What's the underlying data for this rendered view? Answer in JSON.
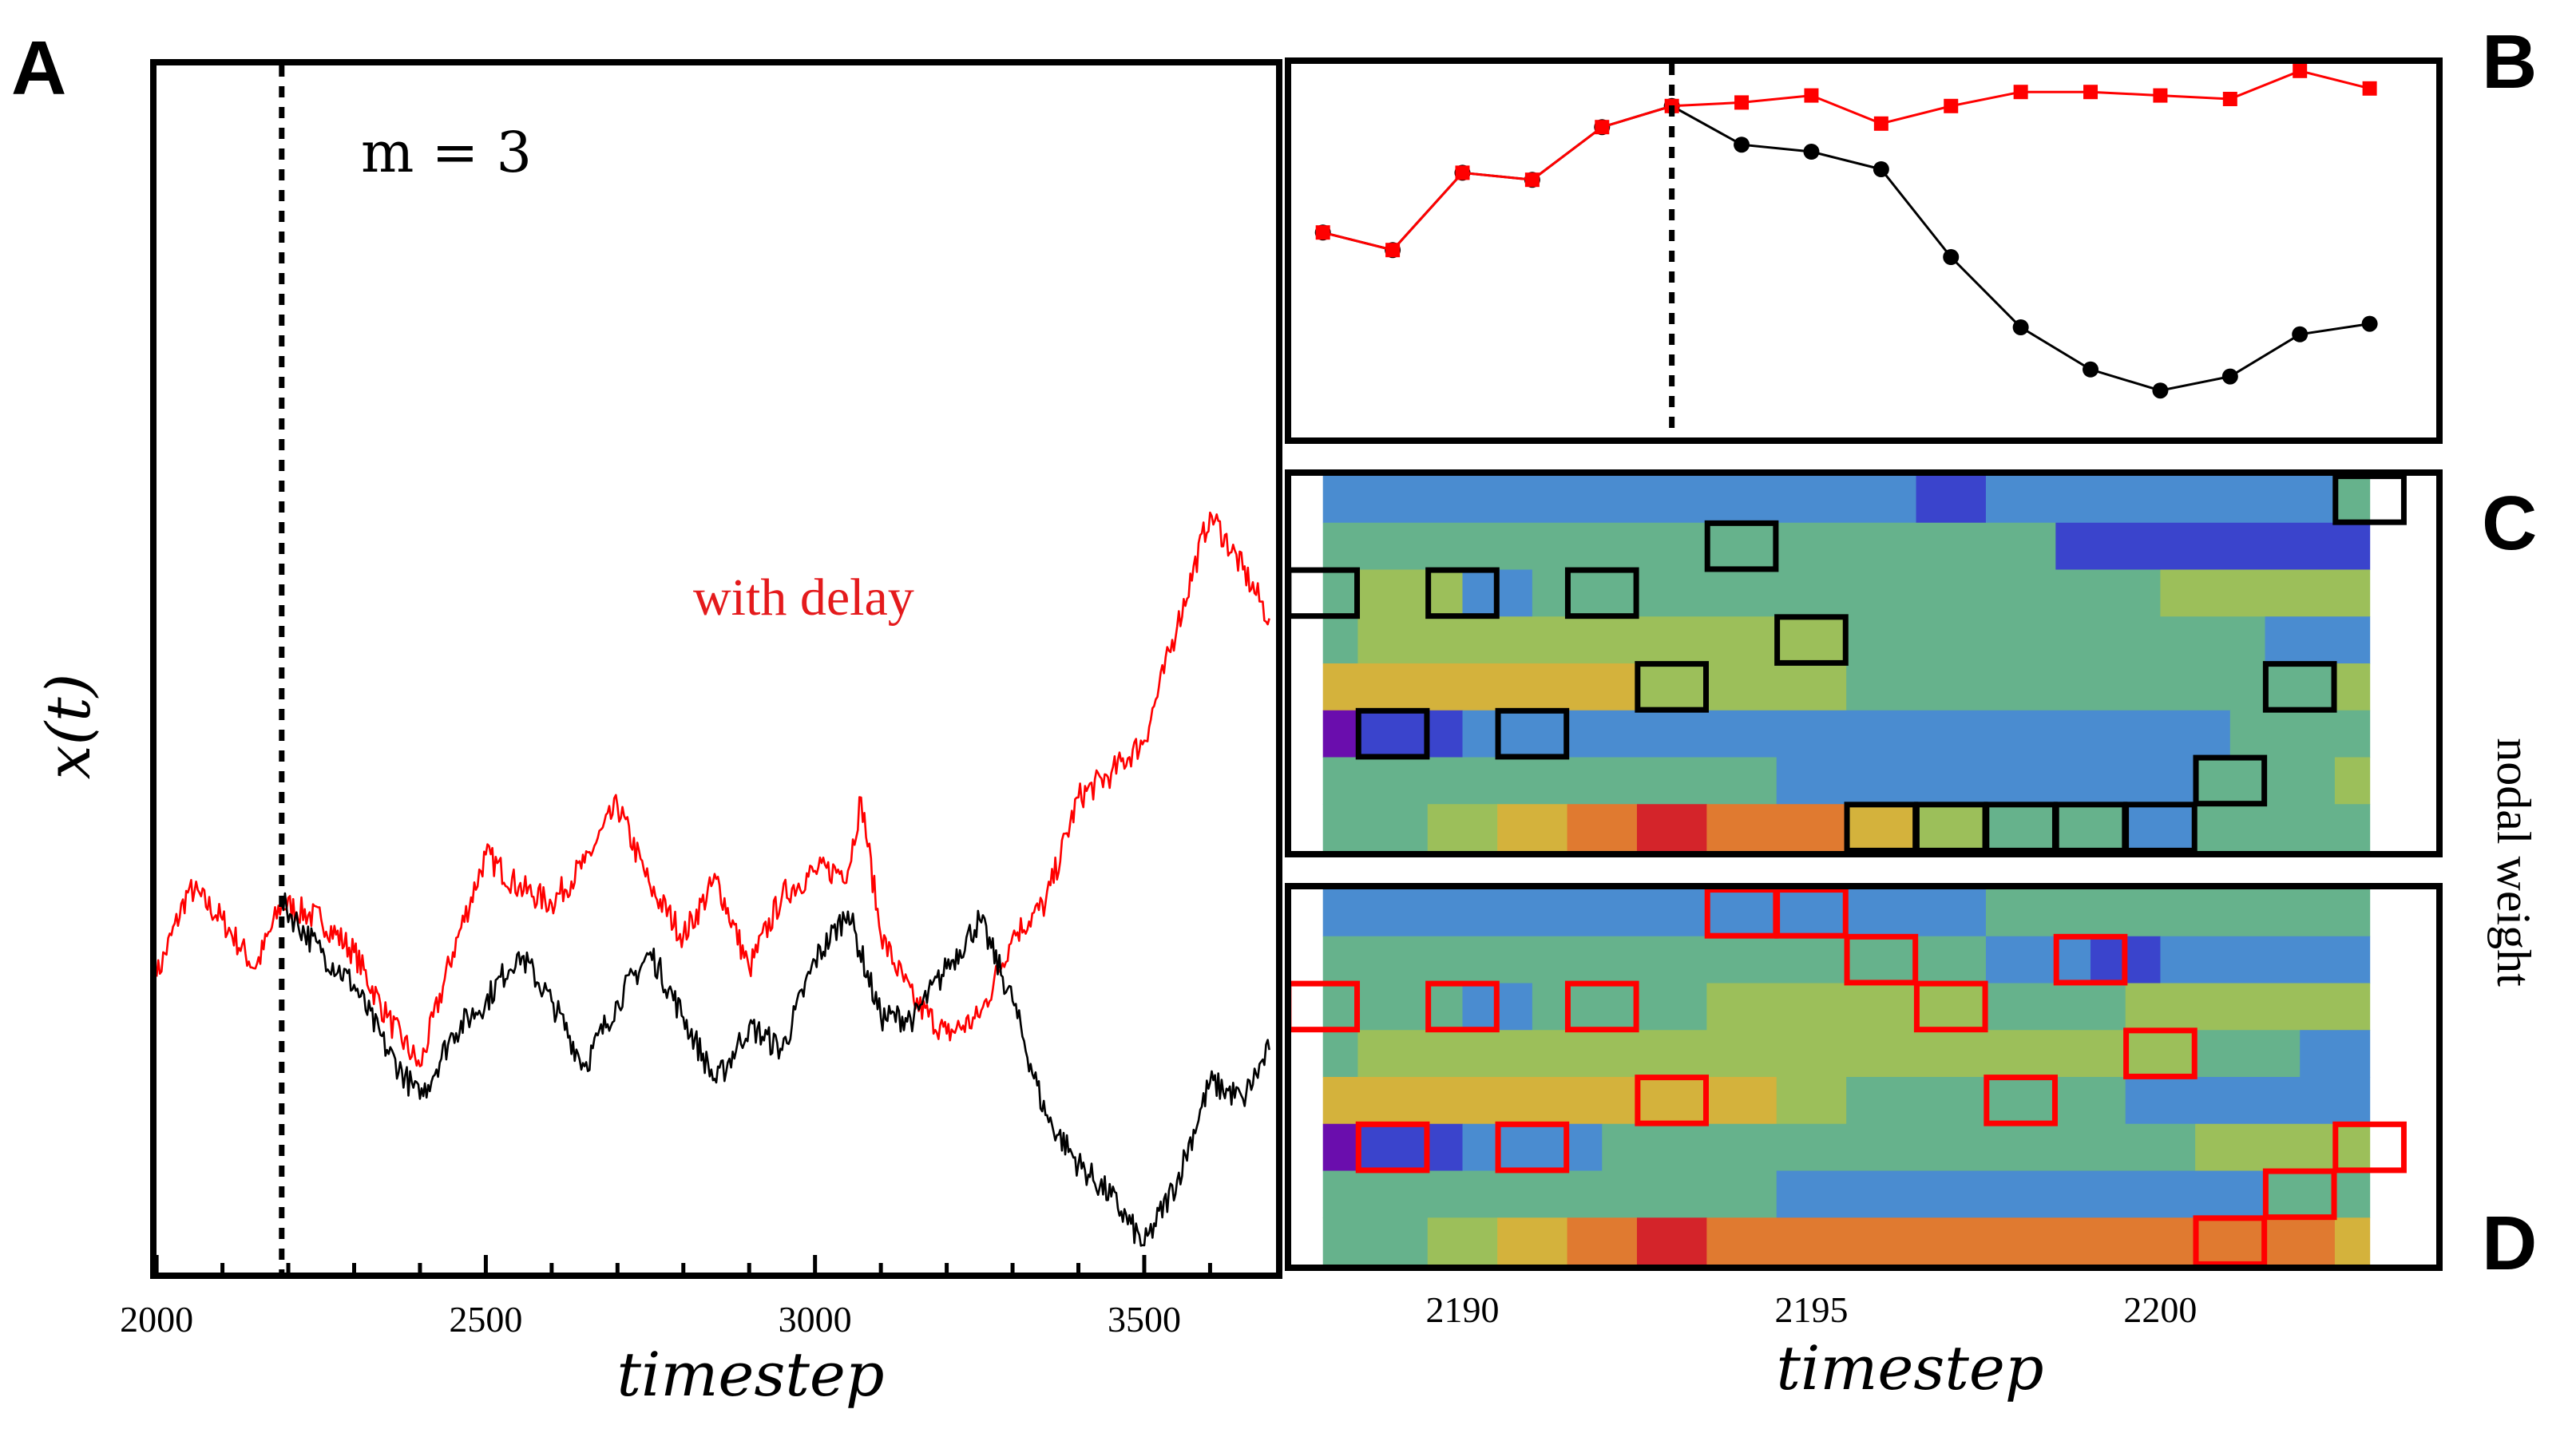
{
  "panel_letters": {
    "a": "A",
    "b": "B",
    "c": "C",
    "d": "D"
  },
  "colors": {
    "series_original": "#000000",
    "series_delay": "#ff0000",
    "weight_palette": [
      "#6a0dad",
      "#3a44cc",
      "#4a8cd0",
      "#66b28c",
      "#9cbf5a",
      "#d4b23c",
      "#e07a30",
      "#d4242a"
    ]
  },
  "chart_data": [
    {
      "id": "A",
      "type": "line",
      "annotation": "m = 3",
      "series_label": "with delay",
      "xlabel": "timestep",
      "ylabel": "x(t)",
      "xlim": [
        1995,
        3705
      ],
      "ylim": [
        0,
        1
      ],
      "xticks": [
        2000,
        2500,
        3000,
        3500
      ],
      "vline_x": 2190,
      "series": [
        {
          "name": "with delay",
          "color": "#ff0000",
          "x": [
            2000,
            2050,
            2100,
            2150,
            2190,
            2250,
            2300,
            2350,
            2400,
            2450,
            2500,
            2550,
            2600,
            2650,
            2700,
            2750,
            2800,
            2850,
            2900,
            2950,
            3000,
            3050,
            3070,
            3100,
            3150,
            3200,
            3250,
            3300,
            3350,
            3400,
            3450,
            3500,
            3550,
            3600,
            3650,
            3690
          ],
          "values": [
            0.33,
            0.44,
            0.4,
            0.34,
            0.42,
            0.4,
            0.36,
            0.28,
            0.22,
            0.36,
            0.48,
            0.44,
            0.42,
            0.47,
            0.54,
            0.44,
            0.38,
            0.45,
            0.34,
            0.43,
            0.46,
            0.46,
            0.55,
            0.38,
            0.3,
            0.26,
            0.28,
            0.38,
            0.42,
            0.55,
            0.58,
            0.62,
            0.76,
            0.9,
            0.83,
            0.77
          ]
        },
        {
          "name": "original",
          "color": "#000000",
          "x": [
            2190,
            2250,
            2300,
            2350,
            2400,
            2450,
            2500,
            2550,
            2600,
            2650,
            2700,
            2750,
            2800,
            2850,
            2900,
            2950,
            3000,
            3050,
            3100,
            3150,
            3200,
            3250,
            3300,
            3350,
            3400,
            3450,
            3500,
            3550,
            3600,
            3650,
            3690
          ],
          "values": [
            0.42,
            0.36,
            0.32,
            0.24,
            0.18,
            0.26,
            0.3,
            0.36,
            0.3,
            0.22,
            0.3,
            0.36,
            0.28,
            0.2,
            0.27,
            0.24,
            0.35,
            0.41,
            0.28,
            0.28,
            0.34,
            0.4,
            0.3,
            0.16,
            0.1,
            0.06,
            0.0,
            0.08,
            0.2,
            0.18,
            0.24
          ]
        }
      ]
    },
    {
      "id": "B",
      "type": "line",
      "xlim": [
        2187.5,
        2204
      ],
      "ylim": [
        0,
        1
      ],
      "vline_x": 2193,
      "series": [
        {
          "name": "with delay",
          "color": "#ff0000",
          "marker": "square",
          "x": [
            2188,
            2189,
            2190,
            2191,
            2192,
            2193,
            2194,
            2195,
            2196,
            2197,
            2198,
            2199,
            2200,
            2201,
            2202,
            2203
          ],
          "values": [
            0.52,
            0.47,
            0.69,
            0.67,
            0.82,
            0.88,
            0.89,
            0.91,
            0.83,
            0.88,
            0.92,
            0.92,
            0.91,
            0.9,
            0.98,
            0.93
          ]
        },
        {
          "name": "original",
          "color": "#000000",
          "marker": "circle",
          "x": [
            2188,
            2189,
            2190,
            2191,
            2192,
            2193,
            2194,
            2195,
            2196,
            2197,
            2198,
            2199,
            2200,
            2201,
            2202,
            2203
          ],
          "values": [
            0.52,
            0.47,
            0.69,
            0.67,
            0.82,
            0.88,
            0.77,
            0.75,
            0.7,
            0.45,
            0.25,
            0.13,
            0.07,
            0.11,
            0.23,
            0.26
          ]
        }
      ]
    },
    {
      "id": "C",
      "type": "heatmap",
      "xlim": [
        2187.5,
        2204
      ],
      "x_start": 2188.0,
      "x_end": 2203.0,
      "nrows": 8,
      "rows": [
        [
          [
            2188.0,
            2196.5,
            2
          ],
          [
            2196.5,
            2197.5,
            1
          ],
          [
            2197.5,
            2202.5,
            2
          ],
          [
            2202.5,
            2203.0,
            3
          ]
        ],
        [
          [
            2188.0,
            2198.5,
            3
          ],
          [
            2198.5,
            2203.0,
            1
          ]
        ],
        [
          [
            2188.0,
            2188.5,
            3
          ],
          [
            2188.5,
            2190.0,
            4
          ],
          [
            2190.0,
            2191.0,
            2
          ],
          [
            2191.0,
            2200.0,
            3
          ],
          [
            2200.0,
            2203.0,
            4
          ]
        ],
        [
          [
            2188.0,
            2188.5,
            3
          ],
          [
            2188.5,
            2195.5,
            4
          ],
          [
            2195.5,
            2201.5,
            3
          ],
          [
            2201.5,
            2203.0,
            2
          ]
        ],
        [
          [
            2188.0,
            2192.5,
            5
          ],
          [
            2192.5,
            2195.5,
            4
          ],
          [
            2195.5,
            2202.5,
            3
          ],
          [
            2202.5,
            2203.0,
            4
          ]
        ],
        [
          [
            2188.0,
            2188.5,
            0
          ],
          [
            2188.5,
            2190.0,
            1
          ],
          [
            2190.0,
            2201.0,
            2
          ],
          [
            2201.0,
            2203.0,
            3
          ]
        ],
        [
          [
            2188.0,
            2194.5,
            3
          ],
          [
            2194.5,
            2200.5,
            2
          ],
          [
            2200.5,
            2202.5,
            3
          ],
          [
            2202.5,
            2203.0,
            4
          ]
        ],
        [
          [
            2188.0,
            2189.5,
            3
          ],
          [
            2189.5,
            2190.5,
            4
          ],
          [
            2190.5,
            2191.5,
            5
          ],
          [
            2191.5,
            2192.5,
            6
          ],
          [
            2192.5,
            2193.5,
            7
          ],
          [
            2193.5,
            2195.5,
            6
          ],
          [
            2195.5,
            2196.5,
            5
          ],
          [
            2196.5,
            2197.5,
            4
          ],
          [
            2197.5,
            2199.5,
            3
          ],
          [
            2199.5,
            2200.5,
            2
          ],
          [
            2200.5,
            2203.0,
            3
          ]
        ]
      ],
      "highlights": [
        [
          2188,
          2
        ],
        [
          2189,
          5
        ],
        [
          2190,
          2
        ],
        [
          2191,
          5
        ],
        [
          2192,
          2
        ],
        [
          2193,
          4
        ],
        [
          2194,
          1
        ],
        [
          2195,
          3
        ],
        [
          2196,
          7
        ],
        [
          2197,
          7
        ],
        [
          2198,
          7
        ],
        [
          2199,
          7
        ],
        [
          2200,
          7
        ],
        [
          2201,
          6
        ],
        [
          2202,
          4
        ],
        [
          2203,
          0
        ]
      ]
    },
    {
      "id": "D",
      "type": "heatmap",
      "xlabel": "timestep",
      "ylabel": "nodal weight",
      "xticks": [
        2190,
        2195,
        2200
      ],
      "xlim": [
        2187.5,
        2204
      ],
      "x_start": 2188.0,
      "x_end": 2203.0,
      "nrows": 8,
      "rows": [
        [
          [
            2188.0,
            2197.5,
            2
          ],
          [
            2197.5,
            2203.0,
            3
          ]
        ],
        [
          [
            2188.0,
            2197.5,
            3
          ],
          [
            2197.5,
            2199.0,
            2
          ],
          [
            2199.0,
            2200.0,
            1
          ],
          [
            2200.0,
            2203.0,
            2
          ]
        ],
        [
          [
            2188.0,
            2190.0,
            3
          ],
          [
            2190.0,
            2191.0,
            2
          ],
          [
            2191.0,
            2193.5,
            3
          ],
          [
            2193.5,
            2197.5,
            4
          ],
          [
            2197.5,
            2199.5,
            3
          ],
          [
            2199.5,
            2203.0,
            4
          ]
        ],
        [
          [
            2188.0,
            2188.5,
            3
          ],
          [
            2188.5,
            2200.5,
            4
          ],
          [
            2200.5,
            2202.0,
            3
          ],
          [
            2202.0,
            2203.0,
            2
          ]
        ],
        [
          [
            2188.0,
            2194.5,
            5
          ],
          [
            2194.5,
            2195.5,
            4
          ],
          [
            2195.5,
            2199.5,
            3
          ],
          [
            2199.5,
            2203.0,
            2
          ]
        ],
        [
          [
            2188.0,
            2188.5,
            0
          ],
          [
            2188.5,
            2190.0,
            1
          ],
          [
            2190.0,
            2192.0,
            2
          ],
          [
            2192.0,
            2200.5,
            3
          ],
          [
            2200.5,
            2203.0,
            4
          ]
        ],
        [
          [
            2188.0,
            2194.5,
            3
          ],
          [
            2194.5,
            2201.5,
            2
          ],
          [
            2201.5,
            2203.0,
            3
          ]
        ],
        [
          [
            2188.0,
            2189.5,
            3
          ],
          [
            2189.5,
            2190.5,
            4
          ],
          [
            2190.5,
            2191.5,
            5
          ],
          [
            2191.5,
            2192.5,
            6
          ],
          [
            2192.5,
            2193.5,
            7
          ],
          [
            2193.5,
            2202.5,
            6
          ],
          [
            2202.5,
            2203.0,
            5
          ]
        ]
      ],
      "highlights": [
        [
          2188,
          2
        ],
        [
          2189,
          5
        ],
        [
          2190,
          2
        ],
        [
          2191,
          5
        ],
        [
          2192,
          2
        ],
        [
          2193,
          4
        ],
        [
          2194,
          0
        ],
        [
          2195,
          0
        ],
        [
          2196,
          1
        ],
        [
          2197,
          2
        ],
        [
          2198,
          4
        ],
        [
          2199,
          1
        ],
        [
          2200,
          3
        ],
        [
          2201,
          7
        ],
        [
          2202,
          6
        ],
        [
          2203,
          5
        ]
      ]
    }
  ]
}
